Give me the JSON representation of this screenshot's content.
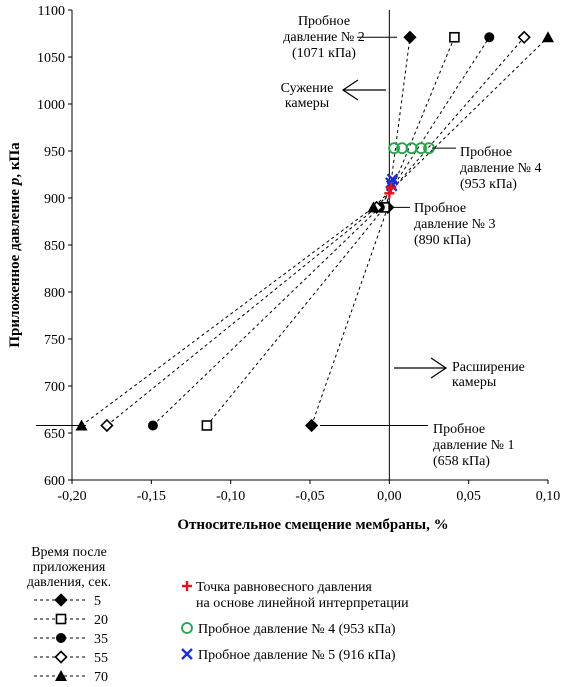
{
  "chart_data": {
    "type": "scatter",
    "title": "",
    "xlabel": "Относительное смещение мембраны, %",
    "ylabel": "Приложенное давление p, кПа",
    "ylabel_parts": [
      "Приложенное давление ",
      "p",
      ", кПа"
    ],
    "xlim": [
      -0.2,
      0.1
    ],
    "ylim": [
      600,
      1100
    ],
    "x_ticks": [
      "-0,20",
      "-0,15",
      "-0,10",
      "-0,05",
      "0,00",
      "0,05",
      "0,10"
    ],
    "y_ticks": [
      "600",
      "650",
      "700",
      "750",
      "800",
      "850",
      "900",
      "950",
      "1000",
      "1050",
      "1100"
    ],
    "grid": false,
    "time_series": [
      {
        "name": "5",
        "marker": "diamond-filled",
        "points": [
          {
            "x": -0.049,
            "y": 658
          },
          {
            "x": -0.001,
            "y": 890
          },
          {
            "x": 0.013,
            "y": 1071
          }
        ]
      },
      {
        "name": "20",
        "marker": "square-open",
        "points": [
          {
            "x": -0.115,
            "y": 658
          },
          {
            "x": -0.003,
            "y": 890
          },
          {
            "x": 0.041,
            "y": 1071
          }
        ]
      },
      {
        "name": "35",
        "marker": "circle-filled",
        "points": [
          {
            "x": -0.149,
            "y": 658
          },
          {
            "x": -0.006,
            "y": 890
          },
          {
            "x": 0.063,
            "y": 1071
          }
        ]
      },
      {
        "name": "55",
        "marker": "diamond-open",
        "points": [
          {
            "x": -0.178,
            "y": 658
          },
          {
            "x": -0.008,
            "y": 890
          },
          {
            "x": 0.085,
            "y": 1071
          }
        ]
      },
      {
        "name": "70",
        "marker": "triangle-filled",
        "points": [
          {
            "x": -0.194,
            "y": 658
          },
          {
            "x": -0.01,
            "y": 890
          },
          {
            "x": 0.1,
            "y": 1071
          }
        ]
      }
    ],
    "equilibrium_points": [
      {
        "x": 0.0,
        "y": 905
      },
      {
        "x": 0.001,
        "y": 911
      }
    ],
    "test4_points": [
      {
        "x": 0.003,
        "y": 953
      },
      {
        "x": 0.008,
        "y": 953
      },
      {
        "x": 0.014,
        "y": 953
      },
      {
        "x": 0.02,
        "y": 953
      },
      {
        "x": 0.025,
        "y": 953
      }
    ],
    "test5_points": [
      {
        "x": 0.001,
        "y": 916
      },
      {
        "x": 0.002,
        "y": 920
      },
      {
        "x": 0.0015,
        "y": 913
      }
    ],
    "annotations": {
      "test2": [
        "Пробное",
        "давление № 2",
        "(1071 кПа)"
      ],
      "compress": [
        "Сужение",
        "камеры"
      ],
      "test4": [
        "Пробное",
        "давление № 4",
        "(953 кПа)"
      ],
      "test3": [
        "Пробное",
        "давление № 3",
        "(890 кПа)"
      ],
      "expand": [
        "Расширение",
        "камеры"
      ],
      "test1": [
        "Пробное",
        "давление № 1",
        "(658 кПа)"
      ]
    },
    "legend_time": {
      "title": [
        "Время после",
        "приложения",
        "давления, сек."
      ],
      "items": [
        "5",
        "20",
        "35",
        "55",
        "70"
      ]
    },
    "legend_main": {
      "equilibrium": [
        "Точка равновесного давления",
        "на основе линейной интерпретации"
      ],
      "test4": "Пробное давление № 4 (953 кПа)",
      "test5": "Пробное давление № 5 (916 кПа)"
    },
    "colors": {
      "equilibrium": "#e8121b",
      "test4": "#1fa64a",
      "test5": "#1a2fd1",
      "series": "#000000"
    }
  }
}
